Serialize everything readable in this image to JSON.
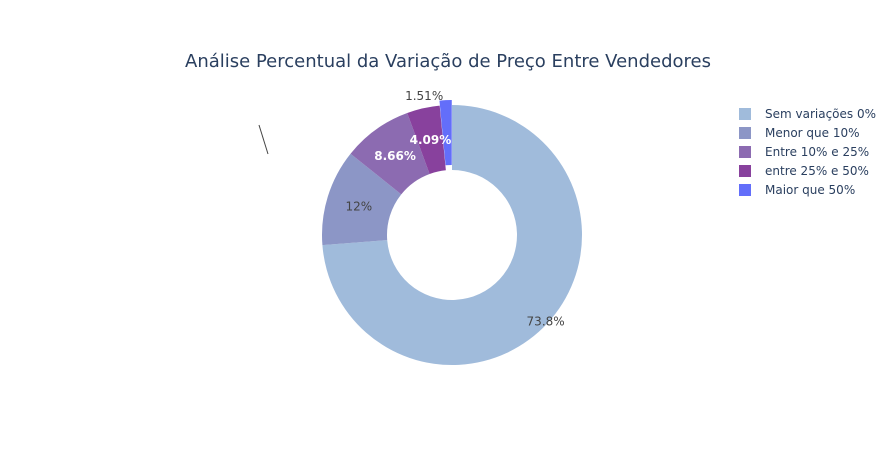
{
  "chart_data": {
    "type": "pie",
    "hole": true,
    "title": "Análise Percentual da Variação de Preço Entre Vendedores",
    "labels": [
      "Sem variações 0%",
      "Menor que 10%",
      "Entre 10% e 25%",
      "entre 25% e 50%",
      "Maior que 50%"
    ],
    "values": [
      73.8,
      12,
      8.66,
      4.09,
      1.51
    ],
    "display_labels": [
      "73.8%",
      "12%",
      "8.66%",
      "4.09%",
      "1.51%"
    ],
    "colors": [
      "#a0bbdb",
      "#8c96c6",
      "#8c6bb1",
      "#88419d",
      "#636efa"
    ],
    "pulled_slice": "Maior que 50%",
    "legend_position": "top-right"
  }
}
